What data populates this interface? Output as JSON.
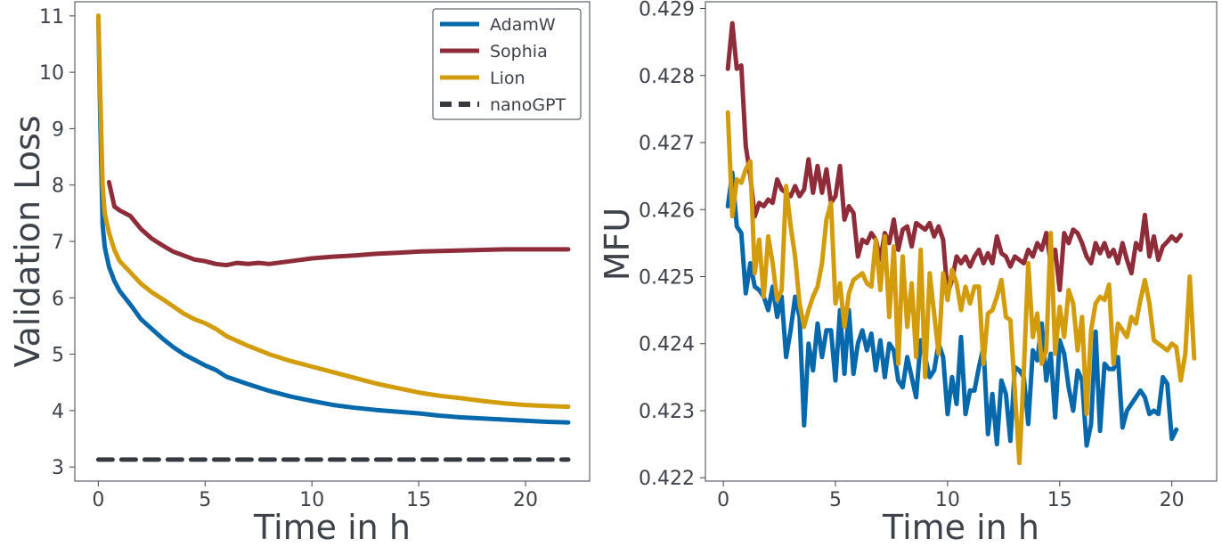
{
  "chart_data": [
    {
      "type": "line",
      "xlabel": "Time in h",
      "ylabel": "Validation Loss",
      "xlim": [
        -1.1,
        23
      ],
      "ylim": [
        2.75,
        11.25
      ],
      "xticks": [
        0,
        5,
        10,
        15,
        20
      ],
      "yticks": [
        3,
        4,
        5,
        6,
        7,
        8,
        9,
        10,
        11
      ],
      "legend": {
        "position": "top-right"
      },
      "series": [
        {
          "name": "AdamW",
          "color": "#0868ac",
          "dash": "solid",
          "x": [
            0,
            0.1,
            0.2,
            0.3,
            0.5,
            0.75,
            1,
            1.5,
            2,
            2.5,
            3,
            3.5,
            4,
            4.5,
            5,
            5.5,
            6,
            7,
            8,
            9,
            10,
            11,
            12,
            13,
            14,
            15,
            16,
            17,
            18,
            19,
            20,
            21,
            22
          ],
          "y": [
            11.0,
            9.0,
            7.3,
            6.9,
            6.55,
            6.3,
            6.12,
            5.88,
            5.62,
            5.45,
            5.28,
            5.13,
            5.0,
            4.9,
            4.8,
            4.72,
            4.6,
            4.47,
            4.35,
            4.25,
            4.17,
            4.1,
            4.05,
            4.01,
            3.98,
            3.95,
            3.91,
            3.88,
            3.86,
            3.84,
            3.82,
            3.8,
            3.79
          ]
        },
        {
          "name": "Sophia",
          "color": "#8e2c3a",
          "dash": "solid",
          "x": [
            0.5,
            0.75,
            1,
            1.5,
            2,
            2.5,
            3,
            3.5,
            4,
            4.5,
            5,
            5.5,
            6,
            6.5,
            7,
            7.5,
            8,
            9,
            10,
            11,
            12,
            13,
            14,
            15,
            16,
            17,
            18,
            19,
            20,
            21,
            22
          ],
          "y": [
            8.05,
            7.62,
            7.55,
            7.45,
            7.22,
            7.05,
            6.93,
            6.82,
            6.75,
            6.68,
            6.65,
            6.6,
            6.58,
            6.62,
            6.6,
            6.62,
            6.6,
            6.65,
            6.7,
            6.73,
            6.75,
            6.78,
            6.8,
            6.82,
            6.83,
            6.84,
            6.85,
            6.86,
            6.86,
            6.86,
            6.86
          ]
        },
        {
          "name": "Lion",
          "color": "#d29c0c",
          "dash": "solid",
          "x": [
            0,
            0.1,
            0.2,
            0.3,
            0.5,
            0.75,
            1,
            1.5,
            2,
            2.5,
            3,
            3.5,
            4,
            4.5,
            5,
            5.5,
            6,
            7,
            8,
            9,
            10,
            11,
            12,
            13,
            14,
            15,
            16,
            17,
            18,
            19,
            20,
            21,
            22
          ],
          "y": [
            11.0,
            9.5,
            8.0,
            7.5,
            7.15,
            6.85,
            6.65,
            6.45,
            6.25,
            6.1,
            5.98,
            5.85,
            5.72,
            5.62,
            5.55,
            5.45,
            5.32,
            5.15,
            5.0,
            4.88,
            4.78,
            4.68,
            4.58,
            4.48,
            4.4,
            4.32,
            4.26,
            4.22,
            4.17,
            4.13,
            4.1,
            4.08,
            4.07
          ]
        },
        {
          "name": "nanoGPT",
          "color": "#343a40",
          "dash": "dashed",
          "x": [
            0,
            22
          ],
          "y": [
            3.13,
            3.13
          ]
        }
      ]
    },
    {
      "type": "line",
      "xlabel": "Time in h",
      "ylabel": "MFU",
      "xlim": [
        -0.8,
        22.0
      ],
      "ylim": [
        0.42195,
        0.4291
      ],
      "xticks": [
        0,
        5,
        10,
        15,
        20
      ],
      "yticks": [
        "0.422",
        "0.423",
        "0.424",
        "0.425",
        "0.426",
        "0.427",
        "0.428",
        "0.429"
      ],
      "series": [
        {
          "name": "AdamW",
          "color": "#0868ac",
          "x": [
            0.2,
            0.4,
            0.6,
            0.8,
            1.0,
            1.2,
            1.4,
            1.6,
            1.8,
            2.0,
            2.2,
            2.4,
            2.6,
            2.8,
            3.0,
            3.2,
            3.4,
            3.6,
            3.8,
            4.0,
            4.2,
            4.4,
            4.6,
            4.8,
            5.0,
            5.2,
            5.4,
            5.6,
            5.8,
            6.0,
            6.2,
            6.4,
            6.6,
            6.8,
            7.0,
            7.2,
            7.4,
            7.6,
            7.8,
            8.0,
            8.2,
            8.4,
            8.6,
            8.8,
            9.0,
            9.2,
            9.4,
            9.6,
            9.8,
            10.0,
            10.2,
            10.4,
            10.6,
            10.8,
            11.0,
            11.2,
            11.4,
            11.6,
            11.8,
            12.0,
            12.2,
            12.4,
            12.6,
            12.8,
            13.0,
            13.2,
            13.4,
            13.6,
            13.8,
            14.0,
            14.2,
            14.4,
            14.6,
            14.8,
            15.0,
            15.2,
            15.4,
            15.6,
            15.8,
            16.0,
            16.2,
            16.4,
            16.6,
            16.8,
            17.0,
            17.2,
            17.4,
            17.6,
            17.8,
            18.0,
            18.2,
            18.4,
            18.6,
            18.8,
            19.0,
            19.2,
            19.4,
            19.6,
            19.8,
            20.0,
            20.2
          ],
          "y": [
            0.42605,
            0.42655,
            0.42575,
            0.42565,
            0.42475,
            0.4252,
            0.42485,
            0.4248,
            0.4247,
            0.4245,
            0.42485,
            0.4244,
            0.4247,
            0.4238,
            0.4242,
            0.4247,
            0.4244,
            0.42278,
            0.424,
            0.4236,
            0.4243,
            0.4238,
            0.4242,
            0.4242,
            0.42345,
            0.4245,
            0.42355,
            0.4245,
            0.42355,
            0.424,
            0.4242,
            0.4239,
            0.42415,
            0.4236,
            0.42405,
            0.4235,
            0.424,
            0.4239,
            0.42345,
            0.42335,
            0.4238,
            0.4235,
            0.4232,
            0.42405,
            0.4238,
            0.4235,
            0.4236,
            0.424,
            0.4238,
            0.42295,
            0.4235,
            0.4231,
            0.4241,
            0.42295,
            0.4233,
            0.4233,
            0.42365,
            0.42395,
            0.42265,
            0.42325,
            0.4225,
            0.42345,
            0.42325,
            0.42255,
            0.42365,
            0.4236,
            0.4235,
            0.4228,
            0.4239,
            0.42375,
            0.4243,
            0.42345,
            0.42385,
            0.4229,
            0.42405,
            0.42385,
            0.42335,
            0.423,
            0.4236,
            0.42345,
            0.42248,
            0.4228,
            0.42418,
            0.4227,
            0.4237,
            0.42362,
            0.42362,
            0.4238,
            0.42275,
            0.423,
            0.4231,
            0.4232,
            0.4233,
            0.4232,
            0.42295,
            0.423,
            0.42295,
            0.4235,
            0.4234,
            0.42258,
            0.42272
          ]
        },
        {
          "name": "Sophia",
          "color": "#8e2c3a",
          "x": [
            0.2,
            0.4,
            0.6,
            0.8,
            1.0,
            1.2,
            1.4,
            1.6,
            1.8,
            2.0,
            2.2,
            2.4,
            2.6,
            2.8,
            3.0,
            3.2,
            3.4,
            3.6,
            3.8,
            4.0,
            4.2,
            4.4,
            4.6,
            4.8,
            5.0,
            5.2,
            5.4,
            5.6,
            5.8,
            6.0,
            6.2,
            6.4,
            6.6,
            6.8,
            7.0,
            7.2,
            7.4,
            7.6,
            7.8,
            8.0,
            8.2,
            8.4,
            8.6,
            8.8,
            9.0,
            9.2,
            9.4,
            9.6,
            9.8,
            10.0,
            10.2,
            10.4,
            10.6,
            10.8,
            11.0,
            11.2,
            11.4,
            11.6,
            11.8,
            12.0,
            12.2,
            12.4,
            12.6,
            12.8,
            13.0,
            13.2,
            13.4,
            13.6,
            13.8,
            14.0,
            14.2,
            14.4,
            14.6,
            14.8,
            15.0,
            15.2,
            15.4,
            15.6,
            15.8,
            16.0,
            16.2,
            16.4,
            16.6,
            16.8,
            17.0,
            17.2,
            17.4,
            17.6,
            17.8,
            18.0,
            18.2,
            18.4,
            18.6,
            18.8,
            19.0,
            19.2,
            19.4,
            19.6,
            19.8,
            20.0,
            20.2,
            20.4
          ],
          "y": [
            0.4281,
            0.42878,
            0.4281,
            0.42815,
            0.42695,
            0.4265,
            0.4259,
            0.4261,
            0.42605,
            0.42615,
            0.4261,
            0.42645,
            0.4263,
            0.42625,
            0.4262,
            0.42635,
            0.4262,
            0.4263,
            0.42675,
            0.42625,
            0.42665,
            0.42625,
            0.4266,
            0.4261,
            0.4262,
            0.42665,
            0.42585,
            0.42605,
            0.42595,
            0.4253,
            0.42555,
            0.4255,
            0.42565,
            0.42555,
            0.42525,
            0.42565,
            0.4255,
            0.42585,
            0.4254,
            0.4257,
            0.42575,
            0.42545,
            0.4258,
            0.42575,
            0.4257,
            0.4258,
            0.4256,
            0.42575,
            0.42555,
            0.42475,
            0.42495,
            0.4253,
            0.4252,
            0.4253,
            0.42515,
            0.4253,
            0.4254,
            0.4252,
            0.42535,
            0.4252,
            0.4256,
            0.42535,
            0.4253,
            0.42515,
            0.4253,
            0.42525,
            0.4252,
            0.4254,
            0.4253,
            0.4255,
            0.4254,
            0.42565,
            0.4252,
            0.4254,
            0.4248,
            0.42565,
            0.4255,
            0.4257,
            0.42565,
            0.4255,
            0.4253,
            0.4252,
            0.4255,
            0.42535,
            0.4255,
            0.4253,
            0.4254,
            0.4252,
            0.4255,
            0.42525,
            0.42505,
            0.4255,
            0.4254,
            0.42592,
            0.4253,
            0.4256,
            0.42525,
            0.42545,
            0.42552,
            0.4256,
            0.42553,
            0.42562
          ]
        },
        {
          "name": "Lion",
          "color": "#d29c0c",
          "x": [
            0.2,
            0.4,
            0.6,
            0.8,
            1.0,
            1.2,
            1.4,
            1.6,
            1.8,
            2.0,
            2.2,
            2.4,
            2.6,
            2.8,
            3.0,
            3.2,
            3.4,
            3.6,
            3.8,
            4.0,
            4.2,
            4.4,
            4.6,
            4.8,
            5.0,
            5.2,
            5.4,
            5.6,
            5.8,
            6.0,
            6.2,
            6.4,
            6.6,
            6.8,
            7.0,
            7.2,
            7.4,
            7.6,
            7.8,
            8.0,
            8.2,
            8.4,
            8.6,
            8.8,
            9.0,
            9.2,
            9.4,
            9.6,
            9.8,
            10.0,
            10.2,
            10.4,
            10.6,
            10.8,
            11.0,
            11.2,
            11.4,
            11.6,
            11.8,
            12.0,
            12.2,
            12.4,
            12.6,
            12.8,
            13.0,
            13.2,
            13.4,
            13.6,
            13.8,
            14.0,
            14.2,
            14.4,
            14.6,
            14.8,
            15.0,
            15.2,
            15.4,
            15.6,
            15.8,
            16.0,
            16.2,
            16.4,
            16.6,
            16.8,
            17.0,
            17.2,
            17.4,
            17.6,
            17.8,
            18.0,
            18.2,
            18.4,
            18.6,
            18.8,
            19.0,
            19.2,
            19.4,
            19.6,
            19.8,
            20.0,
            20.2,
            20.4,
            20.6,
            20.8,
            21.0
          ],
          "y": [
            0.42745,
            0.4259,
            0.42645,
            0.4264,
            0.4266,
            0.42672,
            0.42505,
            0.42555,
            0.4247,
            0.4256,
            0.4252,
            0.42465,
            0.4248,
            0.42635,
            0.42575,
            0.4253,
            0.4246,
            0.42425,
            0.4245,
            0.4247,
            0.42485,
            0.4252,
            0.42585,
            0.4261,
            0.4246,
            0.4249,
            0.42425,
            0.42475,
            0.42495,
            0.425,
            0.42505,
            0.4249,
            0.42485,
            0.42555,
            0.4248,
            0.4256,
            0.4244,
            0.42545,
            0.4237,
            0.4253,
            0.42425,
            0.4249,
            0.4238,
            0.4254,
            0.4235,
            0.42505,
            0.42445,
            0.42385,
            0.42505,
            0.42465,
            0.4251,
            0.4249,
            0.4245,
            0.42485,
            0.4246,
            0.42485,
            0.42485,
            0.4237,
            0.42445,
            0.4245,
            0.4247,
            0.42495,
            0.4244,
            0.42435,
            0.4233,
            0.42222,
            0.4236,
            0.4252,
            0.4241,
            0.42445,
            0.4237,
            0.4239,
            0.42565,
            0.42385,
            0.42455,
            0.4241,
            0.4248,
            0.4246,
            0.4239,
            0.4244,
            0.42295,
            0.4242,
            0.4246,
            0.4247,
            0.42465,
            0.42488,
            0.4237,
            0.4243,
            0.4242,
            0.4241,
            0.4244,
            0.4243,
            0.42465,
            0.42495,
            0.4246,
            0.42405,
            0.424,
            0.42395,
            0.4239,
            0.424,
            0.42395,
            0.42345,
            0.42385,
            0.425,
            0.42378
          ]
        }
      ]
    }
  ]
}
